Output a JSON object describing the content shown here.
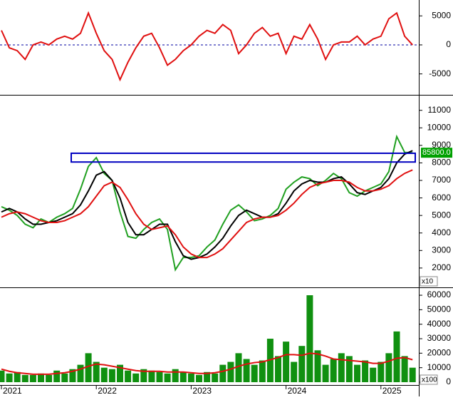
{
  "chart_data": [
    {
      "type": "line",
      "ylim": [
        -7500,
        7000
      ],
      "yticks": [
        5000,
        0,
        -5000
      ],
      "reference_line": 0,
      "categories": [
        "2021",
        null,
        null,
        null,
        null,
        null,
        null,
        null,
        null,
        null,
        null,
        null,
        "2022",
        null,
        null,
        null,
        null,
        null,
        null,
        null,
        null,
        null,
        null,
        null,
        "2023",
        null,
        null,
        null,
        null,
        null,
        null,
        null,
        null,
        null,
        null,
        null,
        "2024",
        null,
        null,
        null,
        null,
        null,
        null,
        null,
        null,
        null,
        null,
        null,
        "2025",
        null,
        null,
        null,
        null
      ],
      "series": [
        {
          "color": "#e01010",
          "values": [
            2500,
            -500,
            -1000,
            -2500,
            0,
            500,
            0,
            1000,
            1500,
            1000,
            2000,
            5500,
            2000,
            -1000,
            -2500,
            -6000,
            -3000,
            -500,
            1500,
            2000,
            -500,
            -3500,
            -2500,
            -1000,
            0,
            1500,
            2500,
            2000,
            3500,
            2500,
            -1500,
            0,
            2000,
            3000,
            1500,
            2000,
            -1500,
            1500,
            1000,
            3500,
            1000,
            -2500,
            0,
            500,
            500,
            1500,
            0,
            1000,
            1500,
            4500,
            5500,
            1500,
            0
          ]
        }
      ]
    },
    {
      "type": "line",
      "ylim": [
        1100,
        11600
      ],
      "yticks": [
        2000,
        3000,
        4000,
        5000,
        6000,
        7000,
        8000,
        9000,
        10000,
        11000
      ],
      "scale_label": "x10",
      "zone": [
        8050,
        8550
      ],
      "zone_color": "#0000c0",
      "last_value_label": {
        "value": 8580,
        "label": "85800.0"
      },
      "series": [
        {
          "color": "#20a020",
          "values": [
            5500,
            5300,
            5000,
            4500,
            4300,
            4800,
            4600,
            4900,
            5100,
            5400,
            6500,
            7800,
            8300,
            7400,
            7000,
            5200,
            3800,
            3700,
            4200,
            4600,
            4800,
            4200,
            1900,
            2600,
            2600,
            2700,
            3200,
            3600,
            4500,
            5300,
            5600,
            5200,
            4700,
            4800,
            5000,
            5400,
            6500,
            6900,
            7200,
            7100,
            6700,
            7000,
            7400,
            7100,
            6300,
            6100,
            6400,
            6600,
            6800,
            7500,
            9500,
            8600,
            8580
          ]
        },
        {
          "color": "#000000",
          "values": [
            5200,
            5400,
            5200,
            4800,
            4500,
            4500,
            4600,
            4700,
            4900,
            5100,
            5600,
            6400,
            7300,
            7500,
            7000,
            6000,
            4600,
            3900,
            3900,
            4200,
            4500,
            4500,
            3500,
            2700,
            2500,
            2600,
            2800,
            3200,
            3700,
            4400,
            5000,
            5300,
            5100,
            4900,
            4900,
            5100,
            5700,
            6400,
            6800,
            7000,
            6900,
            6900,
            7100,
            7200,
            6800,
            6300,
            6200,
            6400,
            6600,
            7100,
            8000,
            8500,
            8700
          ]
        },
        {
          "color": "#e01010",
          "values": [
            4900,
            5100,
            5200,
            5100,
            4900,
            4700,
            4600,
            4600,
            4700,
            4900,
            5100,
            5500,
            6100,
            6700,
            6900,
            6600,
            5900,
            5100,
            4500,
            4200,
            4300,
            4400,
            3900,
            3200,
            2800,
            2600,
            2600,
            2800,
            3100,
            3600,
            4100,
            4600,
            4800,
            4900,
            4900,
            5000,
            5300,
            5700,
            6200,
            6600,
            6800,
            6900,
            7000,
            7000,
            6900,
            6600,
            6400,
            6400,
            6500,
            6700,
            7100,
            7400,
            7600
          ]
        }
      ]
    },
    {
      "type": "bar",
      "ylim": [
        0,
        62000
      ],
      "yticks": [
        0,
        10000,
        20000,
        30000,
        40000,
        50000,
        60000
      ],
      "scale_label": "x100",
      "series": [
        {
          "color": "#109010",
          "values": [
            8000,
            6000,
            7000,
            5000,
            5000,
            6000,
            5000,
            8000,
            6000,
            9000,
            12000,
            20000,
            14000,
            10000,
            9000,
            12000,
            8000,
            6000,
            9000,
            8000,
            7000,
            6000,
            9000,
            7000,
            6000,
            5000,
            7000,
            6000,
            12000,
            14000,
            20000,
            16000,
            12000,
            15000,
            30000,
            18000,
            28000,
            14000,
            25000,
            60000,
            22000,
            12000,
            16000,
            20000,
            18000,
            12000,
            15000,
            10000,
            14000,
            20000,
            35000,
            18000,
            10000
          ]
        },
        {
          "type": "line",
          "color": "#e01010",
          "values": [
            9000,
            7500,
            6500,
            6000,
            5500,
            5500,
            5500,
            6000,
            6500,
            7500,
            9000,
            11000,
            12500,
            12000,
            11000,
            10000,
            9000,
            8000,
            7500,
            7500,
            7500,
            7000,
            7000,
            7000,
            6500,
            6000,
            6000,
            6500,
            7500,
            9000,
            11000,
            12500,
            13500,
            14000,
            15500,
            17000,
            19000,
            19000,
            18500,
            20000,
            19500,
            18000,
            16000,
            15500,
            15000,
            14500,
            14000,
            13000,
            13000,
            14500,
            16500,
            17000,
            15500
          ]
        }
      ]
    }
  ]
}
